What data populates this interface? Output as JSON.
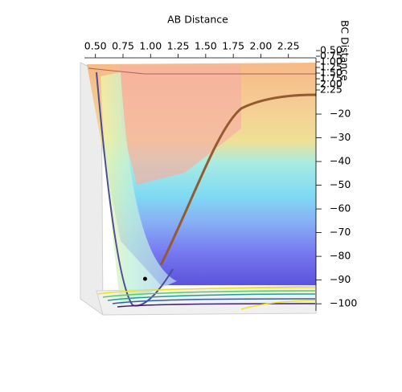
{
  "chart_data": {
    "type": "surface3d",
    "xlabel": "AB Distance",
    "ylabel": "BC Distance",
    "xlim": [
      0.4,
      2.5
    ],
    "xticks": [
      {
        "value": 0.5,
        "label": "0.50"
      },
      {
        "value": 0.75,
        "label": "0.75"
      },
      {
        "value": 1.0,
        "label": "1.00"
      },
      {
        "value": 1.25,
        "label": "1.25"
      },
      {
        "value": 1.5,
        "label": "1.50"
      },
      {
        "value": 1.75,
        "label": "1.75"
      },
      {
        "value": 2.0,
        "label": "2.00"
      },
      {
        "value": 2.25,
        "label": "2.25"
      }
    ],
    "ylim": [
      0.4,
      2.4
    ],
    "yticks": [
      {
        "value": 0.5,
        "label": "0.50"
      },
      {
        "value": 0.75,
        "label": "0.75"
      },
      {
        "value": 1.0,
        "label": "1.00"
      },
      {
        "value": 1.25,
        "label": "1.25"
      },
      {
        "value": 1.5,
        "label": "1.50"
      },
      {
        "value": 1.75,
        "label": "1.75"
      },
      {
        "value": 2.0,
        "label": "2.00"
      },
      {
        "value": 2.25,
        "label": "2.25"
      }
    ],
    "zlim": [
      -103,
      0
    ],
    "zticks": [
      {
        "value": -20,
        "label": "−20"
      },
      {
        "value": -30,
        "label": "−30"
      },
      {
        "value": -40,
        "label": "−40"
      },
      {
        "value": -50,
        "label": "−50"
      },
      {
        "value": -60,
        "label": "−60"
      },
      {
        "value": -70,
        "label": "−70"
      },
      {
        "value": -80,
        "label": "−80"
      },
      {
        "value": -90,
        "label": "−90"
      },
      {
        "value": -100,
        "label": "−100"
      }
    ],
    "point": {
      "x": 0.95,
      "z": -89.5,
      "color": "#000000"
    }
  }
}
